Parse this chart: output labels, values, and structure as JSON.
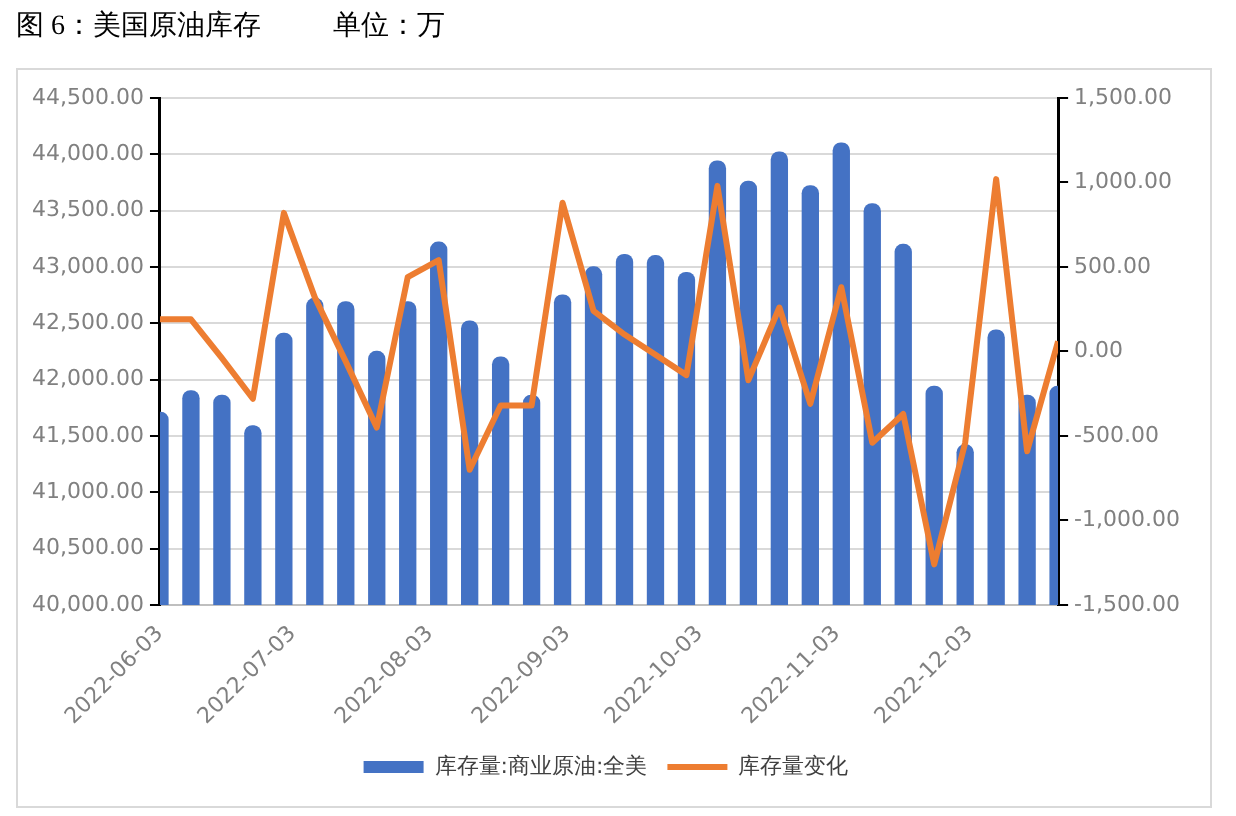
{
  "chart_data": {
    "type": "bar",
    "title": "图 6：美国原油库存",
    "subtitle": "单位：万",
    "x": [
      "2022-06-03",
      "2022-06-10",
      "2022-06-17",
      "2022-06-24",
      "2022-07-01",
      "2022-07-08",
      "2022-07-15",
      "2022-07-22",
      "2022-07-29",
      "2022-08-05",
      "2022-08-12",
      "2022-08-19",
      "2022-08-26",
      "2022-09-02",
      "2022-09-09",
      "2022-09-16",
      "2022-09-23",
      "2022-09-30",
      "2022-10-07",
      "2022-10-14",
      "2022-10-21",
      "2022-10-28",
      "2022-11-04",
      "2022-11-11",
      "2022-11-18",
      "2022-11-25",
      "2022-12-02",
      "2022-12-09",
      "2022-12-16",
      "2022-12-23"
    ],
    "series": [
      {
        "name": "库存量:商业原油:全美",
        "color": "#4472c4",
        "values": [
          41710,
          41900,
          41860,
          41590,
          42410,
          42720,
          42690,
          42250,
          42690,
          43220,
          42520,
          42200,
          41860,
          42750,
          43000,
          43110,
          43100,
          42950,
          43940,
          43760,
          44020,
          43720,
          44100,
          43560,
          43200,
          41940,
          41420,
          42440,
          41860,
          41940
        ]
      },
      {
        "name": "库存量变化",
        "type": "line",
        "color": "#ed7d31",
        "axis": "y2",
        "values": [
          190,
          190,
          -40,
          -280,
          820,
          320,
          -60,
          -450,
          440,
          540,
          -700,
          -320,
          -320,
          880,
          240,
          100,
          -20,
          -140,
          980,
          -170,
          260,
          -310,
          380,
          -540,
          -370,
          -1260,
          -540,
          1020,
          -590,
          60
        ]
      }
    ],
    "xlim": [
      "2022-06-03",
      "2022-12-23"
    ],
    "xticks": [
      "2022-06-03",
      "2022-07-03",
      "2022-08-03",
      "2022-09-03",
      "2022-10-03",
      "2022-11-03",
      "2022-12-03"
    ],
    "ylim": [
      40000,
      44500
    ],
    "yticks": [
      {
        "value": 40000,
        "label": "40,000.00"
      },
      {
        "value": 40500,
        "label": "40,500.00"
      },
      {
        "value": 41000,
        "label": "41,000.00"
      },
      {
        "value": 41500,
        "label": "41,500.00"
      },
      {
        "value": 42000,
        "label": "42,000.00"
      },
      {
        "value": 42500,
        "label": "42,500.00"
      },
      {
        "value": 43000,
        "label": "43,000.00"
      },
      {
        "value": 43500,
        "label": "43,500.00"
      },
      {
        "value": 44000,
        "label": "44,000.00"
      },
      {
        "value": 44500,
        "label": "44,500.00"
      }
    ],
    "y2lim": [
      -1500,
      1500
    ],
    "y2ticks": [
      {
        "value": -1500,
        "label": "-1,500.00"
      },
      {
        "value": -1000,
        "label": "-1,000.00"
      },
      {
        "value": -500,
        "label": "-500.00"
      },
      {
        "value": 0,
        "label": "0.00"
      },
      {
        "value": 500,
        "label": "500.00"
      },
      {
        "value": 1000,
        "label": "1,000.00"
      },
      {
        "value": 1500,
        "label": "1,500.00"
      }
    ],
    "grid": "y",
    "legend": "bottom",
    "marker": "none",
    "line_style": "solid"
  }
}
